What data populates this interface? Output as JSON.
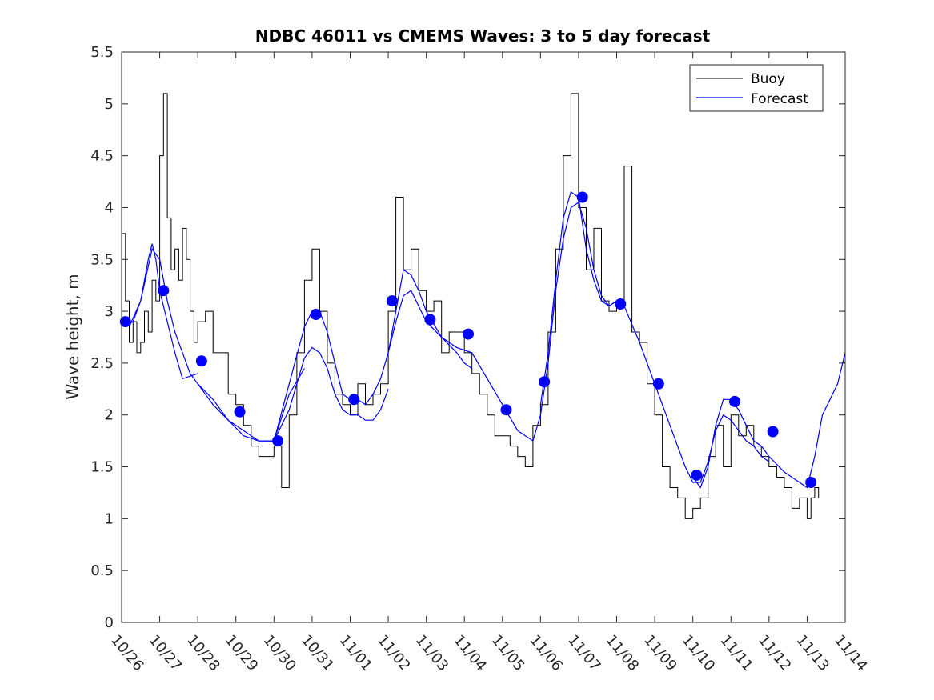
{
  "chart_data": {
    "type": "line",
    "title": "NDBC 46011 vs CMEMS Waves: 3 to 5 day forecast",
    "xlabel": "",
    "ylabel": "Wave height, m",
    "xlim": [
      0,
      19
    ],
    "ylim": [
      0,
      5.5
    ],
    "x_tick_labels": [
      "10/26",
      "10/27",
      "10/28",
      "10/29",
      "10/30",
      "10/31",
      "11/01",
      "11/02",
      "11/03",
      "11/04",
      "11/05",
      "11/06",
      "11/07",
      "11/08",
      "11/09",
      "11/10",
      "11/11",
      "11/12",
      "11/13",
      "11/14"
    ],
    "y_tick_labels": [
      "0",
      "0.5",
      "1",
      "1.5",
      "2",
      "2.5",
      "3",
      "3.5",
      "4",
      "4.5",
      "5",
      "5.5"
    ],
    "legend": {
      "position": "top-right",
      "entries": [
        "Buoy",
        "Forecast"
      ]
    },
    "colors": {
      "buoy": "#000000",
      "forecast": "#0000ff",
      "axis": "#262626"
    },
    "series": [
      {
        "name": "Buoy",
        "x": [
          0,
          0.1,
          0.2,
          0.3,
          0.4,
          0.5,
          0.6,
          0.7,
          0.8,
          0.9,
          1.0,
          1.1,
          1.2,
          1.3,
          1.4,
          1.5,
          1.6,
          1.7,
          1.8,
          1.9,
          2.0,
          2.2,
          2.4,
          2.6,
          2.8,
          3.0,
          3.2,
          3.4,
          3.6,
          3.8,
          4.0,
          4.2,
          4.4,
          4.6,
          4.8,
          5.0,
          5.2,
          5.4,
          5.6,
          5.8,
          6.0,
          6.2,
          6.4,
          6.6,
          6.8,
          7.0,
          7.2,
          7.4,
          7.6,
          7.8,
          8.0,
          8.2,
          8.4,
          8.6,
          8.8,
          9.0,
          9.2,
          9.4,
          9.6,
          9.8,
          10.0,
          10.2,
          10.4,
          10.6,
          10.8,
          11.0,
          11.2,
          11.4,
          11.6,
          11.8,
          12.0,
          12.2,
          12.4,
          12.6,
          12.8,
          13.0,
          13.2,
          13.4,
          13.6,
          13.8,
          14.0,
          14.2,
          14.4,
          14.6,
          14.8,
          15.0,
          15.2,
          15.4,
          15.6,
          15.8,
          16.0,
          16.2,
          16.4,
          16.6,
          16.8,
          17.0,
          17.2,
          17.4,
          17.6,
          17.8,
          18.0,
          18.1,
          18.2,
          18.3
        ],
        "values": [
          3.75,
          3.1,
          2.7,
          2.9,
          2.6,
          2.7,
          3.0,
          2.8,
          3.3,
          3.1,
          4.5,
          5.1,
          3.9,
          3.4,
          3.6,
          3.3,
          3.8,
          3.5,
          3.0,
          2.7,
          2.9,
          3.0,
          2.6,
          2.6,
          2.2,
          2.1,
          1.9,
          1.7,
          1.6,
          1.6,
          1.7,
          1.3,
          2.0,
          2.6,
          3.3,
          3.6,
          3.0,
          2.5,
          2.2,
          2.1,
          2.0,
          2.3,
          2.1,
          2.2,
          2.3,
          3.0,
          4.1,
          3.4,
          3.6,
          3.2,
          3.0,
          3.1,
          2.6,
          2.8,
          2.8,
          2.6,
          2.4,
          2.2,
          2.0,
          1.8,
          1.8,
          1.7,
          1.6,
          1.5,
          1.9,
          2.1,
          2.8,
          3.6,
          4.5,
          5.1,
          4.0,
          3.4,
          3.8,
          3.1,
          3.0,
          3.1,
          4.4,
          2.8,
          2.7,
          2.3,
          2.0,
          1.5,
          1.3,
          1.2,
          1.0,
          1.1,
          1.2,
          1.6,
          1.9,
          1.5,
          2.0,
          1.8,
          1.9,
          1.7,
          1.6,
          1.5,
          1.4,
          1.3,
          1.1,
          1.2,
          1.0,
          1.2,
          1.3,
          1.2
        ]
      },
      {
        "name": "Forecast",
        "segments": [
          {
            "x": [
              0.05,
              0.3,
              0.5,
              0.7,
              0.8,
              0.9,
              1.0,
              1.1,
              1.2,
              1.4,
              1.6,
              2.0
            ],
            "values": [
              2.85,
              2.9,
              3.1,
              3.5,
              3.65,
              3.5,
              3.2,
              3.05,
              2.9,
              2.6,
              2.35,
              2.4
            ]
          },
          {
            "x": [
              0.2,
              0.5,
              0.8,
              1.0,
              1.2,
              1.4,
              1.6,
              1.8,
              2.0,
              2.4,
              2.8,
              3.2,
              3.6,
              4.0,
              4.4,
              4.8
            ],
            "values": [
              2.85,
              3.1,
              3.6,
              3.5,
              3.1,
              2.8,
              2.6,
              2.4,
              2.3,
              2.1,
              1.95,
              1.8,
              1.75,
              1.75,
              2.2,
              2.45
            ]
          },
          {
            "x": [
              2.0,
              2.4,
              2.8,
              3.2,
              3.6,
              4.0,
              4.4,
              4.8,
              5.0,
              5.2,
              5.4,
              5.6,
              5.8,
              6.0,
              6.2,
              6.4,
              6.6,
              6.8,
              7.0
            ],
            "values": [
              2.3,
              2.15,
              1.95,
              1.85,
              1.75,
              1.75,
              2.05,
              2.55,
              2.65,
              2.6,
              2.45,
              2.2,
              2.05,
              2.0,
              2.0,
              1.95,
              1.95,
              2.05,
              2.25
            ]
          },
          {
            "x": [
              4.0,
              4.4,
              4.8,
              5.0,
              5.2,
              5.4,
              5.6,
              5.8,
              6.0,
              6.2,
              6.4,
              6.6,
              6.8,
              7.0,
              7.2,
              7.4,
              7.6,
              7.8,
              8.0,
              8.4,
              8.8,
              9.0,
              9.2
            ],
            "values": [
              1.75,
              2.3,
              2.85,
              3.0,
              3.0,
              2.8,
              2.5,
              2.2,
              2.15,
              2.15,
              2.1,
              2.2,
              2.35,
              2.6,
              3.0,
              3.4,
              3.35,
              3.2,
              3.0,
              2.75,
              2.6,
              2.5,
              2.45
            ]
          },
          {
            "x": [
              7.0,
              7.2,
              7.4,
              7.6,
              7.8,
              8.0,
              8.4,
              8.8,
              9.2,
              9.6,
              10.0,
              10.4,
              10.8,
              11.0,
              11.2,
              11.4,
              11.6,
              11.8,
              12.0,
              12.2,
              12.4,
              12.6,
              12.8,
              13.0
            ],
            "values": [
              2.6,
              2.9,
              3.15,
              3.2,
              3.05,
              2.9,
              2.75,
              2.65,
              2.6,
              2.35,
              2.1,
              1.85,
              1.75,
              2.0,
              2.5,
              3.2,
              3.7,
              4.0,
              4.05,
              3.8,
              3.4,
              3.15,
              3.05,
              3.1
            ]
          },
          {
            "x": [
              11.0,
              11.2,
              11.4,
              11.6,
              11.8,
              12.0,
              12.2,
              12.4,
              12.6,
              12.8,
              13.0,
              13.2,
              13.6,
              14.0,
              14.4,
              14.8,
              15.0,
              15.2,
              15.4,
              15.6,
              15.8,
              16.0,
              16.2,
              16.4,
              16.6,
              16.8,
              17.0
            ],
            "values": [
              2.1,
              2.6,
              3.3,
              3.9,
              4.15,
              4.1,
              3.6,
              3.3,
              3.1,
              3.05,
              3.1,
              3.05,
              2.7,
              2.3,
              1.9,
              1.5,
              1.35,
              1.35,
              1.55,
              1.85,
              2.0,
              1.95,
              1.85,
              1.75,
              1.7,
              1.6,
              1.55
            ]
          },
          {
            "x": [
              15.0,
              15.2,
              15.4,
              15.6,
              15.8,
              16.0,
              16.2,
              16.4,
              16.6,
              16.8,
              17.0,
              17.4,
              17.8,
              18.0,
              18.2,
              18.4,
              18.6,
              18.8,
              19.0
            ],
            "values": [
              1.4,
              1.3,
              1.5,
              1.9,
              2.15,
              2.15,
              2.05,
              1.9,
              1.75,
              1.7,
              1.6,
              1.45,
              1.35,
              1.3,
              1.6,
              2.0,
              2.15,
              2.3,
              2.6
            ]
          }
        ]
      },
      {
        "name": "Forecast markers",
        "x": [
          0.1,
          1.1,
          2.1,
          3.1,
          4.1,
          5.1,
          6.1,
          7.1,
          8.1,
          9.1,
          10.1,
          11.1,
          12.1,
          13.1,
          14.1,
          15.1,
          16.1,
          17.1,
          18.1
        ],
        "values": [
          2.9,
          3.2,
          2.52,
          2.03,
          1.75,
          2.97,
          2.15,
          3.1,
          2.92,
          2.78,
          2.05,
          2.32,
          4.1,
          3.07,
          2.3,
          1.42,
          2.13,
          1.84,
          1.35
        ]
      }
    ]
  }
}
